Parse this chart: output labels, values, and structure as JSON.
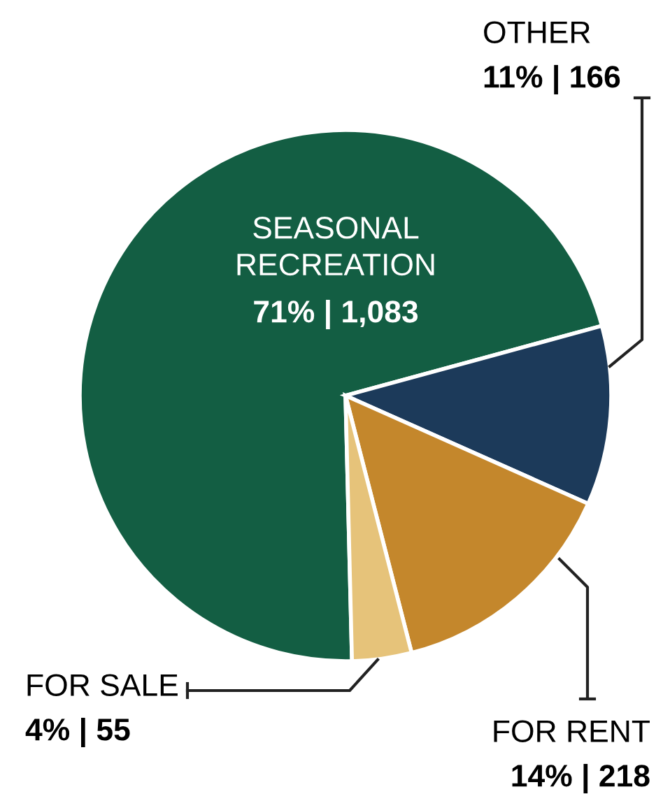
{
  "chart_data": {
    "type": "pie",
    "categories": [
      "SEASONAL\nRECREATION",
      "OTHER",
      "FOR RENT",
      "FOR SALE"
    ],
    "values": [
      1083,
      166,
      218,
      55
    ],
    "value_labels": [
      "71% | 1,083",
      "11% | 166",
      "14% | 218",
      "4% | 55"
    ],
    "colors": [
      "#135e43",
      "#1c3a5a",
      "#c4872c",
      "#e6c37a"
    ]
  }
}
